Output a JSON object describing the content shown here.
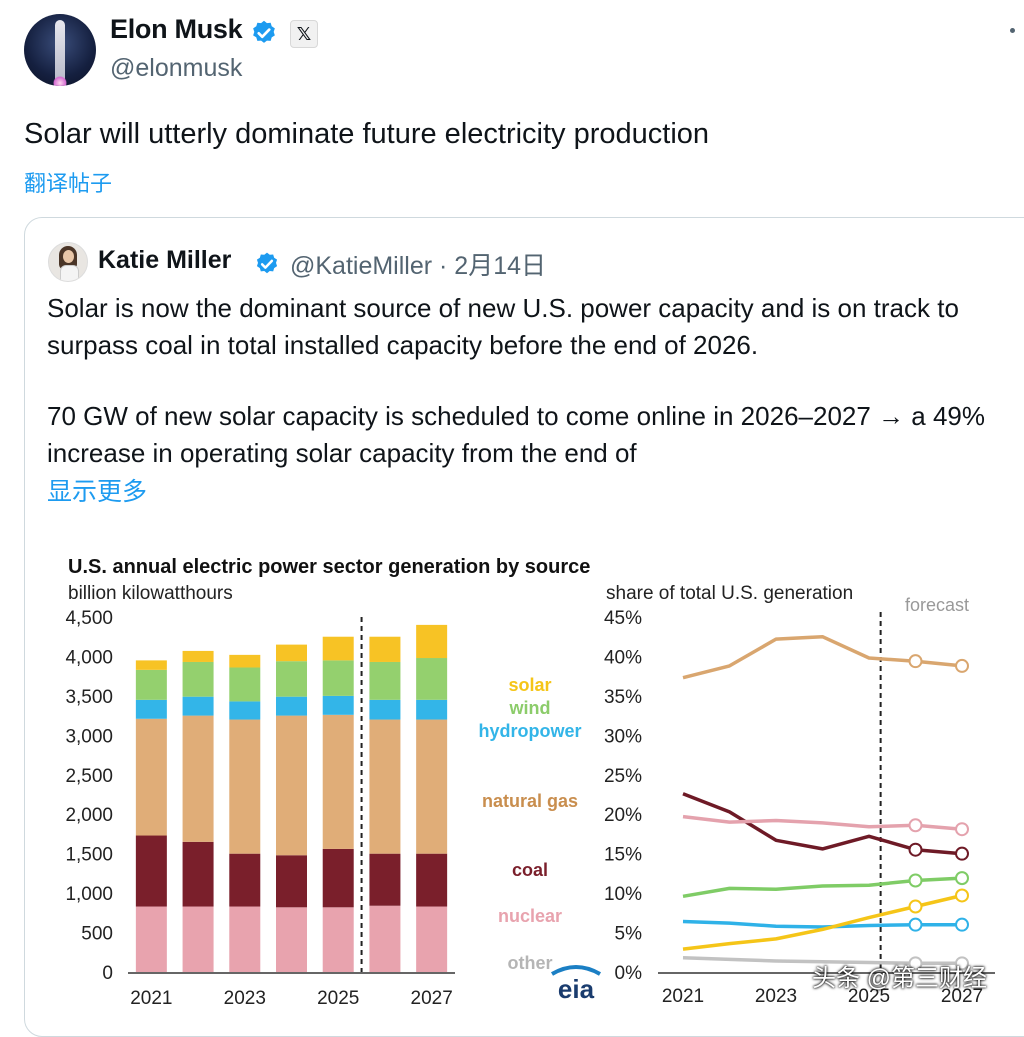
{
  "tweet": {
    "author_name": "Elon Musk",
    "author_handle": "@elonmusk",
    "x_badge": "𝕏",
    "text": "Solar will utterly dominate future electricity production",
    "translate_label": "翻译帖子"
  },
  "quote": {
    "author_name": "Katie Miller",
    "meta": "@KatieMiller · 2月14日",
    "paragraph1": "Solar is now the dominant source of new U.S. power capacity and is on track to surpass coal in total installed capacity before the end of 2026.",
    "paragraph2": "70 GW of new solar capacity is scheduled to come online in 2026–2027 → a 49% increase in operating solar capacity from the end of",
    "show_more": "显示更多"
  },
  "chart": {
    "title": "U.S. annual electric power sector generation by source",
    "left_unit": "billion kilowatthours",
    "right_unit": "share of total U.S. generation",
    "forecast_label": "forecast",
    "logo": "eia",
    "legend": [
      {
        "label": "solar",
        "color": "#f5c518"
      },
      {
        "label": "wind",
        "color": "#8ccc6a"
      },
      {
        "label": "hydropower",
        "color": "#33b5e8"
      },
      {
        "label": "natural gas",
        "color": "#c98e4e"
      },
      {
        "label": "coal",
        "color": "#7a1f2b"
      },
      {
        "label": "nuclear",
        "color": "#e8a3ae"
      },
      {
        "label": "other",
        "color": "#b5b5b5"
      }
    ]
  },
  "chart_data": [
    {
      "type": "bar",
      "stacked": true,
      "ylabel": "billion kilowatthours",
      "ylim": [
        0,
        4500
      ],
      "yticks": [
        "0",
        "500",
        "1,000",
        "1,500",
        "2,000",
        "2,500",
        "3,000",
        "3,500",
        "4,000",
        "4,500"
      ],
      "ytick_values": [
        0,
        500,
        1000,
        1500,
        2000,
        2500,
        3000,
        3500,
        4000,
        4500
      ],
      "categories": [
        "2021",
        "2022",
        "2023",
        "2024",
        "2025",
        "2026",
        "2027"
      ],
      "xtick_labels": [
        "2021",
        "",
        "2023",
        "",
        "2025",
        "",
        "2027"
      ],
      "forecast_from": "2026",
      "series": [
        {
          "name": "nuclear",
          "color": "#e8a3ae",
          "values": [
            830,
            830,
            830,
            820,
            820,
            840,
            830
          ]
        },
        {
          "name": "coal",
          "color": "#7a1f2b",
          "values": [
            900,
            820,
            670,
            660,
            740,
            660,
            670
          ]
        },
        {
          "name": "natural gas",
          "color": "#e0ad78",
          "values": [
            1480,
            1600,
            1700,
            1770,
            1700,
            1700,
            1700
          ]
        },
        {
          "name": "hydropower",
          "color": "#33b5e8",
          "values": [
            240,
            240,
            230,
            240,
            240,
            250,
            250
          ]
        },
        {
          "name": "wind",
          "color": "#94d06e",
          "values": [
            380,
            440,
            430,
            450,
            450,
            480,
            530
          ]
        },
        {
          "name": "solar",
          "color": "#f7c325",
          "values": [
            120,
            140,
            160,
            210,
            300,
            320,
            420
          ]
        }
      ]
    },
    {
      "type": "line",
      "ylabel": "share of total U.S. generation",
      "ylim": [
        0,
        45
      ],
      "yticks": [
        "0%",
        "5%",
        "10%",
        "15%",
        "20%",
        "25%",
        "30%",
        "35%",
        "40%",
        "45%"
      ],
      "ytick_values": [
        0,
        5,
        10,
        15,
        20,
        25,
        30,
        35,
        40,
        45
      ],
      "x": [
        2021,
        2022,
        2023,
        2024,
        2025,
        2026,
        2027
      ],
      "xtick_labels": [
        "2021",
        "",
        "2023",
        "",
        "2025",
        "",
        "2027"
      ],
      "forecast_from": 2025.25,
      "series": [
        {
          "name": "natural gas",
          "color": "#d9a66f",
          "values": [
            37.3,
            38.8,
            42.2,
            42.5,
            39.8,
            39.4,
            38.8
          ]
        },
        {
          "name": "coal",
          "color": "#6e1a26",
          "values": [
            22.6,
            20.3,
            16.7,
            15.6,
            17.2,
            15.5,
            15.0
          ]
        },
        {
          "name": "nuclear",
          "color": "#e4a2ad",
          "values": [
            19.7,
            19.0,
            19.2,
            18.9,
            18.4,
            18.6,
            18.1
          ]
        },
        {
          "name": "wind",
          "color": "#7fcc66",
          "values": [
            9.6,
            10.6,
            10.5,
            10.9,
            11.0,
            11.6,
            11.9
          ]
        },
        {
          "name": "hydropower",
          "color": "#2fb2e8",
          "values": [
            6.4,
            6.2,
            5.8,
            5.7,
            5.9,
            6.0,
            6.0
          ]
        },
        {
          "name": "solar",
          "color": "#f5c518",
          "values": [
            2.9,
            3.6,
            4.2,
            5.4,
            6.9,
            8.3,
            9.7
          ]
        },
        {
          "name": "other",
          "color": "#c2c2c2",
          "values": [
            1.8,
            1.6,
            1.4,
            1.3,
            1.2,
            1.1,
            1.1
          ]
        }
      ],
      "forecast_markers": [
        2026,
        2027
      ]
    }
  ],
  "watermark": "头条 @第三财经"
}
